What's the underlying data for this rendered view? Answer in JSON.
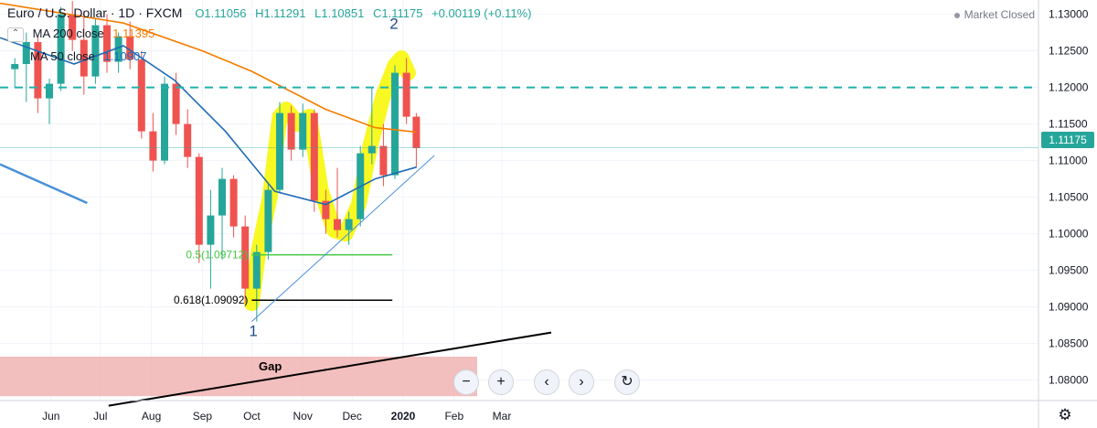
{
  "header": {
    "symbol": "Euro / U.S. Dollar",
    "interval": "1D",
    "exchange": "FXCM",
    "open": "O1.11056",
    "high": "H1.11291",
    "low": "L1.10851",
    "close": "C1.11175",
    "change": "+0.00119 (+0.11%)"
  },
  "indicators": [
    {
      "label": "MA 200 close",
      "value": "1.11395",
      "color": "#f57c00"
    },
    {
      "label": "MA 50 close",
      "value": "1.10907",
      "color": "#1e6ab5"
    }
  ],
  "status": {
    "market": "Market Closed"
  },
  "last_price": "1.11175",
  "colors": {
    "up": "#26a69a",
    "down": "#ef5350",
    "ma200": "#f57c00",
    "ma50": "#1e6ab5",
    "highlight": "#f7f70a",
    "resistance": "#20b2aa",
    "fib50": "#43c943",
    "fib618": "#000000",
    "gap_zone": "#f0b3b3",
    "trendline": "#4a90d9"
  },
  "icons": {
    "collapse": "chevron-up-icon",
    "zoom_out": "minus-icon",
    "zoom_in": "plus-icon",
    "scroll_left": "chevron-left-icon",
    "scroll_right": "chevron-right-icon",
    "reset": "reset-icon",
    "settings": "gear-icon"
  },
  "chart_data": {
    "type": "candlestick",
    "instrument": "EUR/USD",
    "timeframe": "1D",
    "x_axis_labels": [
      "Jun",
      "Jul",
      "Aug",
      "Sep",
      "Oct",
      "Nov",
      "Dec",
      "2020",
      "Feb",
      "Mar"
    ],
    "y_axis_labels": [
      "1.13000",
      "1.12500",
      "1.12000",
      "1.11500",
      "1.11000",
      "1.10500",
      "1.10000",
      "1.09500",
      "1.09000",
      "1.08500",
      "1.08000"
    ],
    "ylim": [
      1.0772,
      1.1312
    ],
    "ma200": [
      {
        "date": "2019-05-01",
        "value": 1.1315
      },
      {
        "date": "2019-07-15",
        "value": 1.1288
      },
      {
        "date": "2019-09-01",
        "value": 1.125
      },
      {
        "date": "2019-10-01",
        "value": 1.1222
      },
      {
        "date": "2019-11-15",
        "value": 1.117
      },
      {
        "date": "2019-12-15",
        "value": 1.1145
      },
      {
        "date": "2020-01-09",
        "value": 1.1139
      }
    ],
    "ma50": [
      {
        "date": "2019-05-01",
        "value": 1.1268
      },
      {
        "date": "2019-06-15",
        "value": 1.1232
      },
      {
        "date": "2019-07-15",
        "value": 1.1257
      },
      {
        "date": "2019-08-15",
        "value": 1.121
      },
      {
        "date": "2019-09-15",
        "value": 1.114
      },
      {
        "date": "2019-10-15",
        "value": 1.1058
      },
      {
        "date": "2019-11-15",
        "value": 1.104
      },
      {
        "date": "2019-12-15",
        "value": 1.1075
      },
      {
        "date": "2020-01-09",
        "value": 1.1091
      }
    ],
    "annotations": [
      {
        "text": "1",
        "date": "2019-10-01",
        "price": 1.0875
      },
      {
        "text": "2",
        "date": "2019-12-31",
        "price": 1.126
      },
      {
        "text": "0.5(1.09712)",
        "price": 1.09712
      },
      {
        "text": "0.618(1.09092)",
        "price": 1.09092
      },
      {
        "text": "Gap"
      }
    ],
    "resistance": {
      "price": 1.12,
      "style": "dashed"
    },
    "fib_levels": [
      {
        "ratio": "0.5",
        "price": 1.09712,
        "from": "2019-10-01",
        "to": "2019-12-31"
      },
      {
        "ratio": "0.618",
        "price": 1.09092,
        "from": "2019-10-01",
        "to": "2019-12-31"
      }
    ],
    "gap_zone": {
      "from": "2019-05-01",
      "to": "2020-02-15",
      "low": 1.0778,
      "high": 1.0832
    },
    "trendlines": [
      {
        "from": {
          "date": "2019-10-01",
          "price": 1.088
        },
        "to": {
          "date": "2020-01-20",
          "price": 1.1107
        }
      },
      {
        "from": {
          "date": "2019-05-01",
          "price": 1.1095
        },
        "to": {
          "date": "2019-06-23",
          "price": 1.1042
        }
      },
      {
        "from": {
          "date": "2019-07-06",
          "price": 1.0765
        },
        "to": {
          "date": "2020-03-31",
          "price": 1.0865
        }
      }
    ],
    "highlight_path": [
      {
        "date": "2019-10-01",
        "price": 1.0905
      },
      {
        "date": "2019-10-05",
        "price": 1.0975
      },
      {
        "date": "2019-10-12",
        "price": 1.105
      },
      {
        "date": "2019-10-18",
        "price": 1.116
      },
      {
        "date": "2019-10-22",
        "price": 1.117
      },
      {
        "date": "2019-10-29",
        "price": 1.115
      },
      {
        "date": "2019-11-05",
        "price": 1.116
      },
      {
        "date": "2019-11-12",
        "price": 1.106
      },
      {
        "date": "2019-11-20",
        "price": 1.1005
      },
      {
        "date": "2019-11-27",
        "price": 1.1
      },
      {
        "date": "2019-12-05",
        "price": 1.104
      },
      {
        "date": "2019-12-12",
        "price": 1.112
      },
      {
        "date": "2019-12-20",
        "price": 1.119
      },
      {
        "date": "2019-12-27",
        "price": 1.123
      },
      {
        "date": "2019-12-31",
        "price": 1.124
      },
      {
        "date": "2020-01-04",
        "price": 1.122
      }
    ],
    "candles": [
      {
        "date": "2019-05-10",
        "o": 1.1225,
        "h": 1.124,
        "l": 1.12,
        "c": 1.1232
      },
      {
        "date": "2019-05-17",
        "o": 1.1232,
        "h": 1.1275,
        "l": 1.118,
        "c": 1.1262
      },
      {
        "date": "2019-05-24",
        "o": 1.1262,
        "h": 1.127,
        "l": 1.1165,
        "c": 1.1185
      },
      {
        "date": "2019-05-31",
        "o": 1.1185,
        "h": 1.1212,
        "l": 1.115,
        "c": 1.1205
      },
      {
        "date": "2019-06-07",
        "o": 1.1205,
        "h": 1.131,
        "l": 1.1195,
        "c": 1.13
      },
      {
        "date": "2019-06-14",
        "o": 1.13,
        "h": 1.1318,
        "l": 1.125,
        "c": 1.1265
      },
      {
        "date": "2019-06-21",
        "o": 1.1265,
        "h": 1.1305,
        "l": 1.119,
        "c": 1.1215
      },
      {
        "date": "2019-06-28",
        "o": 1.1215,
        "h": 1.1295,
        "l": 1.1205,
        "c": 1.1285
      },
      {
        "date": "2019-07-05",
        "o": 1.1285,
        "h": 1.13,
        "l": 1.122,
        "c": 1.1235
      },
      {
        "date": "2019-07-12",
        "o": 1.1235,
        "h": 1.1275,
        "l": 1.122,
        "c": 1.127
      },
      {
        "date": "2019-07-19",
        "o": 1.127,
        "h": 1.129,
        "l": 1.1225,
        "c": 1.1238
      },
      {
        "date": "2019-07-26",
        "o": 1.1238,
        "h": 1.125,
        "l": 1.113,
        "c": 1.114
      },
      {
        "date": "2019-08-02",
        "o": 1.114,
        "h": 1.1165,
        "l": 1.1085,
        "c": 1.11
      },
      {
        "date": "2019-08-09",
        "o": 1.11,
        "h": 1.1215,
        "l": 1.1095,
        "c": 1.1205
      },
      {
        "date": "2019-08-16",
        "o": 1.1205,
        "h": 1.122,
        "l": 1.1135,
        "c": 1.115
      },
      {
        "date": "2019-08-23",
        "o": 1.115,
        "h": 1.117,
        "l": 1.109,
        "c": 1.1105
      },
      {
        "date": "2019-08-30",
        "o": 1.1105,
        "h": 1.111,
        "l": 1.096,
        "c": 1.0985
      },
      {
        "date": "2019-09-06",
        "o": 1.0985,
        "h": 1.106,
        "l": 1.0925,
        "c": 1.1025
      },
      {
        "date": "2019-09-13",
        "o": 1.1025,
        "h": 1.109,
        "l": 1.0965,
        "c": 1.1075
      },
      {
        "date": "2019-09-20",
        "o": 1.1075,
        "h": 1.108,
        "l": 1.0995,
        "c": 1.101
      },
      {
        "date": "2019-09-27",
        "o": 1.101,
        "h": 1.1025,
        "l": 1.0905,
        "c": 1.0925
      },
      {
        "date": "2019-10-04",
        "o": 1.0925,
        "h": 1.0985,
        "l": 1.088,
        "c": 1.0975
      },
      {
        "date": "2019-10-11",
        "o": 1.0975,
        "h": 1.107,
        "l": 1.0965,
        "c": 1.106
      },
      {
        "date": "2019-10-18",
        "o": 1.106,
        "h": 1.118,
        "l": 1.1055,
        "c": 1.1165
      },
      {
        "date": "2019-10-25",
        "o": 1.1165,
        "h": 1.1175,
        "l": 1.11,
        "c": 1.1115
      },
      {
        "date": "2019-11-01",
        "o": 1.1115,
        "h": 1.1178,
        "l": 1.1105,
        "c": 1.1165
      },
      {
        "date": "2019-11-08",
        "o": 1.1165,
        "h": 1.117,
        "l": 1.103,
        "c": 1.1045
      },
      {
        "date": "2019-11-15",
        "o": 1.1045,
        "h": 1.106,
        "l": 1.1,
        "c": 1.102
      },
      {
        "date": "2019-11-22",
        "o": 1.102,
        "h": 1.109,
        "l": 1.0995,
        "c": 1.1005
      },
      {
        "date": "2019-11-29",
        "o": 1.1005,
        "h": 1.103,
        "l": 1.0985,
        "c": 1.102
      },
      {
        "date": "2019-12-06",
        "o": 1.102,
        "h": 1.112,
        "l": 1.101,
        "c": 1.111
      },
      {
        "date": "2019-12-13",
        "o": 1.111,
        "h": 1.12,
        "l": 1.1095,
        "c": 1.112
      },
      {
        "date": "2019-12-20",
        "o": 1.112,
        "h": 1.115,
        "l": 1.1065,
        "c": 1.108
      },
      {
        "date": "2019-12-27",
        "o": 1.108,
        "h": 1.123,
        "l": 1.1075,
        "c": 1.122
      },
      {
        "date": "2020-01-03",
        "o": 1.122,
        "h": 1.124,
        "l": 1.115,
        "c": 1.116
      },
      {
        "date": "2020-01-09",
        "o": 1.116,
        "h": 1.1165,
        "l": 1.109,
        "c": 1.1117
      }
    ]
  }
}
